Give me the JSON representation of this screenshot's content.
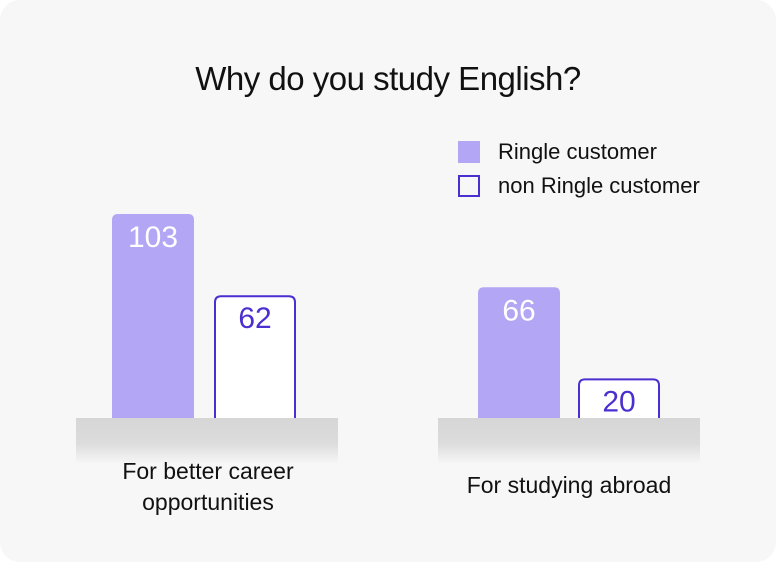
{
  "chart_data": {
    "type": "bar",
    "title": "Why do you study English?",
    "categories": [
      "For better career opportunities",
      "For studying abroad"
    ],
    "series": [
      {
        "name": "Ringle customer",
        "values": [
          103,
          66
        ],
        "style": "filled",
        "color": "#b3a6f5"
      },
      {
        "name": "non Ringle customer",
        "values": [
          62,
          20
        ],
        "style": "outline",
        "color": "#4b2fd0"
      }
    ],
    "ylim": [
      0,
      103
    ]
  },
  "colors": {
    "card_background": "#f7f7f7",
    "filled_bar": "#b3a6f5",
    "outline_bar": "#4b2fd0",
    "baseline": "#d9d9d9"
  }
}
